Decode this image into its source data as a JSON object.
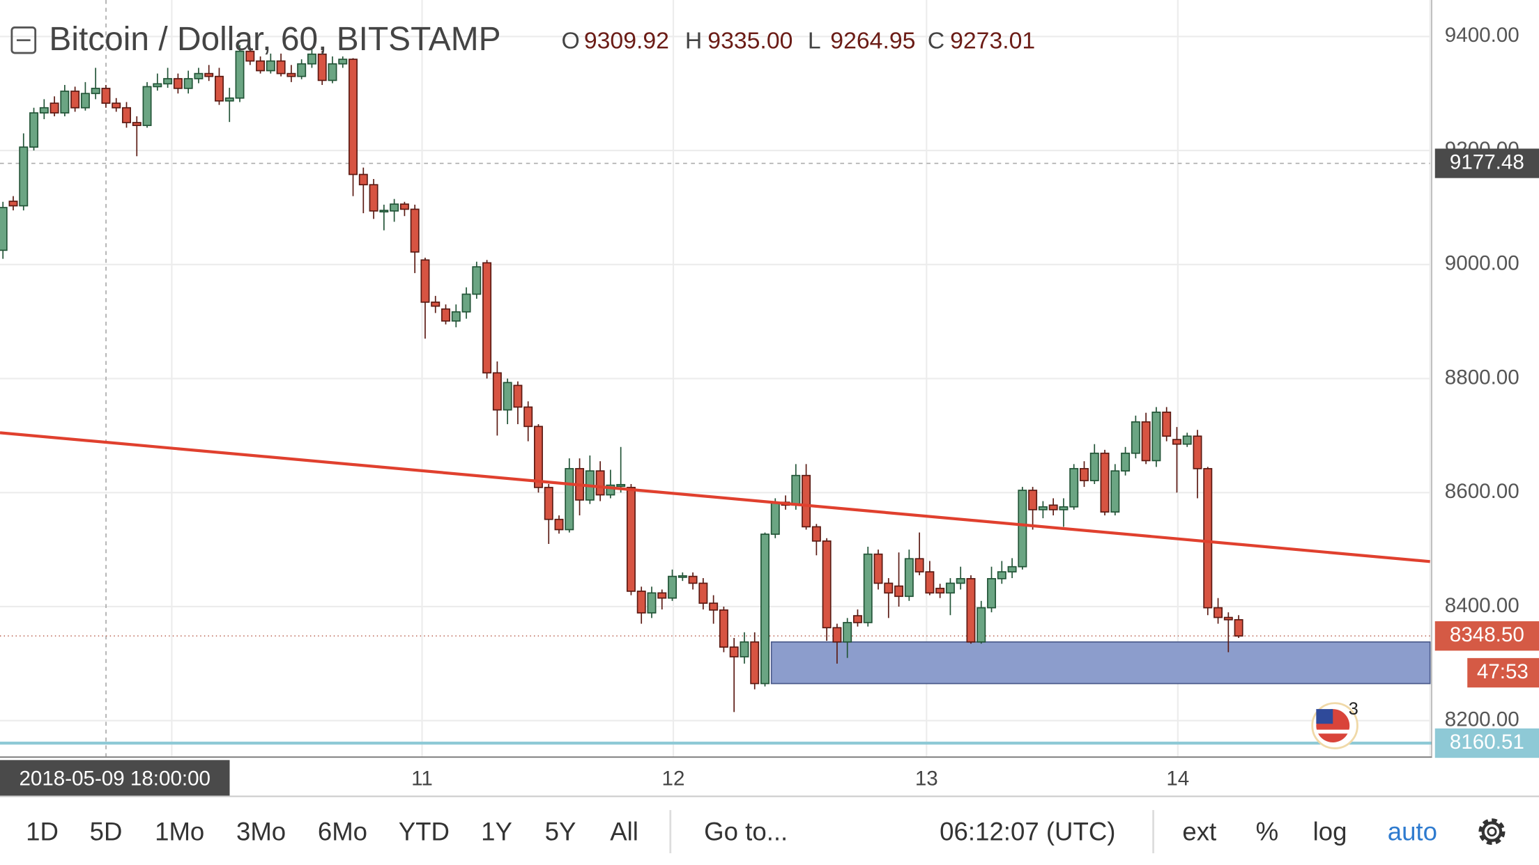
{
  "header": {
    "symbol": "Bitcoin / Dollar, 60, BITSTAMP",
    "ohlc": [
      {
        "key": "O",
        "value": "9309.92"
      },
      {
        "key": "H",
        "value": "9335.00"
      },
      {
        "key": "L",
        "value": "9264.95"
      },
      {
        "key": "C",
        "value": "9273.01"
      }
    ]
  },
  "chart_data": {
    "type": "candlestick",
    "ylim": [
      8136,
      9464
    ],
    "yticks": [
      {
        "value": 8200,
        "label": "8200.00"
      },
      {
        "value": 8400,
        "label": "8400.00"
      },
      {
        "value": 8600,
        "label": "8600.00"
      },
      {
        "value": 8800,
        "label": "8800.00"
      },
      {
        "value": 9000,
        "label": "9000.00"
      },
      {
        "value": 9200,
        "label": "9200.00"
      },
      {
        "value": 9400,
        "label": "9400.00"
      }
    ],
    "grid": true,
    "x_labels": [
      "11",
      "12",
      "13",
      "14"
    ],
    "up_color": "#6ba583",
    "down_color": "#d75442",
    "open": [
      9025,
      9111,
      9103,
      9206,
      9266,
      9283,
      9266,
      9304,
      9275,
      9300,
      9309,
      9283,
      9275,
      9249,
      9244,
      9312,
      9317,
      9326,
      9309,
      9326,
      9335,
      9330,
      9287,
      9292,
      9374,
      9357,
      9340,
      9357,
      9335,
      9330,
      9352,
      9369,
      9323,
      9352,
      9360,
      9158,
      9140,
      9094,
      9094,
      9106,
      9097,
      9008,
      8934,
      8922,
      8901,
      8917,
      8948,
      9003,
      8810,
      8745,
      8788,
      8750,
      8716,
      8609,
      8553,
      8535,
      8642,
      8587,
      8638,
      8596,
      8611,
      8609,
      8427,
      8389,
      8424,
      8415,
      8452,
      8453,
      8441,
      8406,
      8394,
      8329,
      8312,
      8338,
      8265,
      8527,
      8583,
      8578,
      8630,
      8540,
      8515,
      8363,
      8338,
      8384,
      8372,
      8492,
      8441,
      8436,
      8418,
      8484,
      8461,
      8432,
      8424,
      8441,
      8449,
      8338,
      8398,
      8449,
      8461,
      8470,
      8604,
      8570,
      8578,
      8570,
      8575,
      8642,
      8621,
      8669,
      8566,
      8638,
      8669,
      8724,
      8656,
      8741,
      8693,
      8685,
      8699,
      8642,
      8398,
      8381,
      8377
    ],
    "high": [
      9110,
      9120,
      9230,
      9275,
      9290,
      9295,
      9315,
      9312,
      9320,
      9345,
      9315,
      9292,
      9285,
      9260,
      9320,
      9335,
      9345,
      9335,
      9340,
      9345,
      9350,
      9345,
      9310,
      9385,
      9380,
      9365,
      9370,
      9370,
      9350,
      9360,
      9380,
      9375,
      9365,
      9365,
      9362,
      9170,
      9150,
      9105,
      9115,
      9110,
      9105,
      9012,
      8945,
      8930,
      8930,
      8960,
      9005,
      9008,
      8830,
      8800,
      8795,
      8760,
      8720,
      8615,
      8560,
      8660,
      8660,
      8665,
      8655,
      8640,
      8680,
      8615,
      8435,
      8435,
      8430,
      8465,
      8460,
      8460,
      8450,
      8420,
      8400,
      8345,
      8355,
      8355,
      8530,
      8590,
      8595,
      8650,
      8650,
      8545,
      8520,
      8370,
      8380,
      8395,
      8505,
      8500,
      8450,
      8495,
      8500,
      8530,
      8480,
      8440,
      8450,
      8470,
      8455,
      8410,
      8470,
      8480,
      8485,
      8610,
      8610,
      8585,
      8590,
      8590,
      8650,
      8655,
      8685,
      8675,
      8650,
      8680,
      8735,
      8740,
      8750,
      8750,
      8715,
      8705,
      8710,
      8645,
      8415,
      8390,
      8385
    ],
    "low": [
      9010,
      9095,
      9095,
      9200,
      9255,
      9260,
      9260,
      9268,
      9270,
      9290,
      9275,
      9268,
      9240,
      9190,
      9240,
      9305,
      9310,
      9300,
      9300,
      9318,
      9322,
      9280,
      9250,
      9285,
      9350,
      9335,
      9335,
      9330,
      9320,
      9325,
      9345,
      9315,
      9318,
      9345,
      9120,
      9090,
      9080,
      9060,
      9075,
      9085,
      8985,
      8870,
      8915,
      8895,
      8890,
      8905,
      8940,
      8800,
      8700,
      8720,
      8720,
      8690,
      8600,
      8510,
      8528,
      8530,
      8560,
      8580,
      8585,
      8590,
      8600,
      8420,
      8370,
      8380,
      8395,
      8410,
      8445,
      8430,
      8395,
      8370,
      8320,
      8215,
      8300,
      8255,
      8260,
      8520,
      8570,
      8570,
      8535,
      8490,
      8340,
      8300,
      8310,
      8365,
      8365,
      8430,
      8380,
      8400,
      8410,
      8455,
      8420,
      8415,
      8385,
      8430,
      8335,
      8335,
      8390,
      8440,
      8450,
      8465,
      8535,
      8555,
      8560,
      8540,
      8570,
      8610,
      8615,
      8560,
      8560,
      8630,
      8660,
      8650,
      8645,
      8690,
      8600,
      8680,
      8590,
      8385,
      8370,
      8320,
      8345
    ],
    "close": [
      9100,
      9103,
      9206,
      9266,
      9275,
      9266,
      9304,
      9275,
      9300,
      9309,
      9283,
      9275,
      9249,
      9244,
      9312,
      9317,
      9326,
      9309,
      9326,
      9335,
      9330,
      9287,
      9292,
      9374,
      9357,
      9340,
      9357,
      9335,
      9330,
      9352,
      9369,
      9323,
      9352,
      9360,
      9158,
      9140,
      9094,
      9095,
      9106,
      9097,
      9022,
      8934,
      8927,
      8901,
      8917,
      8948,
      8996,
      8810,
      8745,
      8793,
      8750,
      8716,
      8609,
      8553,
      8535,
      8642,
      8587,
      8638,
      8596,
      8613,
      8614,
      8427,
      8389,
      8424,
      8415,
      8453,
      8454,
      8441,
      8406,
      8394,
      8329,
      8312,
      8338,
      8265,
      8527,
      8583,
      8578,
      8630,
      8540,
      8515,
      8363,
      8338,
      8372,
      8372,
      8492,
      8441,
      8424,
      8418,
      8484,
      8461,
      8424,
      8424,
      8441,
      8449,
      8338,
      8398,
      8449,
      8461,
      8470,
      8604,
      8570,
      8575,
      8570,
      8575,
      8642,
      8621,
      8669,
      8566,
      8638,
      8669,
      8724,
      8656,
      8741,
      8699,
      8685,
      8699,
      8642,
      8398,
      8381,
      8377,
      8348.5
    ],
    "trendline": {
      "start": 8705,
      "end": 8479,
      "color": "#e0402e"
    },
    "zone": {
      "top": 8338,
      "bottom": 8265,
      "color": "#8c9dcc"
    },
    "support_line": {
      "value": 8160.51,
      "color": "#8ec9d6"
    },
    "crosshair": {
      "time": "2018-05-09 18:00:00",
      "price": 9177.48
    },
    "last_price": {
      "value": 8348.5,
      "label": "8348.50"
    },
    "countdown": "47:53",
    "badge": "3"
  },
  "toolbar": {
    "ranges": [
      "1D",
      "5D",
      "1Mo",
      "3Mo",
      "6Mo",
      "YTD",
      "1Y",
      "5Y",
      "All"
    ],
    "goto": "Go to...",
    "clock": "06:12:07 (UTC)",
    "options": [
      "ext",
      "%",
      "log",
      "auto"
    ]
  }
}
